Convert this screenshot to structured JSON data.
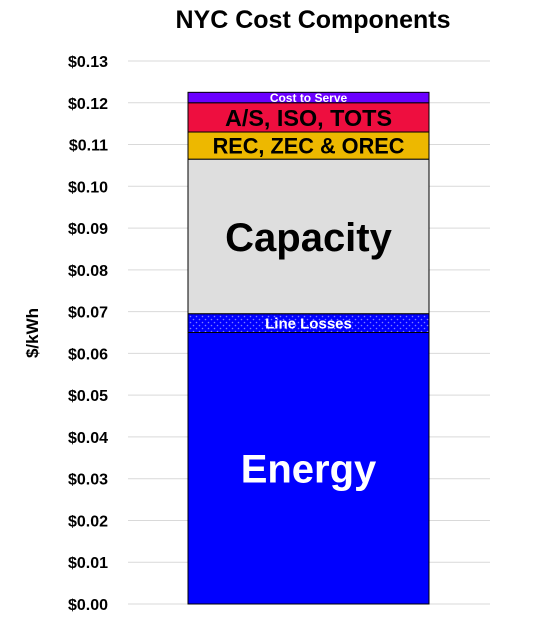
{
  "chart_data": {
    "type": "bar",
    "stacked": true,
    "title": "NYC Cost Components",
    "ylabel": "$/kWh",
    "xlabel": "",
    "ylim": [
      0,
      0.13
    ],
    "yticks": [
      "$0.00",
      "$0.01",
      "$0.02",
      "$0.03",
      "$0.04",
      "$0.05",
      "$0.06",
      "$0.07",
      "$0.08",
      "$0.09",
      "$0.10",
      "$0.11",
      "$0.12",
      "$0.13"
    ],
    "ytick_values": [
      0,
      0.01,
      0.02,
      0.03,
      0.04,
      0.05,
      0.06,
      0.07,
      0.08,
      0.09,
      0.1,
      0.11,
      0.12,
      0.13
    ],
    "grid": true,
    "series": [
      {
        "name": "Energy",
        "value": 0.065,
        "color": "#0000FF",
        "label_color": "#FFFFFF",
        "pattern": "none"
      },
      {
        "name": "Line Losses",
        "value": 0.0045,
        "color": "#0000FF",
        "label_color": "#FFFFFF",
        "pattern": "dots"
      },
      {
        "name": "Capacity",
        "value": 0.037,
        "color": "#DEDEDE",
        "label_color": "#000000",
        "pattern": "none"
      },
      {
        "name": "REC, ZEC & OREC",
        "value": 0.0065,
        "color": "#EDB800",
        "label_color": "#000000",
        "pattern": "none"
      },
      {
        "name": "A/S, ISO, TOTS",
        "value": 0.007,
        "color": "#EE0E3F",
        "label_color": "#000000",
        "pattern": "none"
      },
      {
        "name": "Cost to Serve",
        "value": 0.0025,
        "color": "#6B00FF",
        "label_color": "#FFFFFF",
        "pattern": "none"
      }
    ]
  }
}
